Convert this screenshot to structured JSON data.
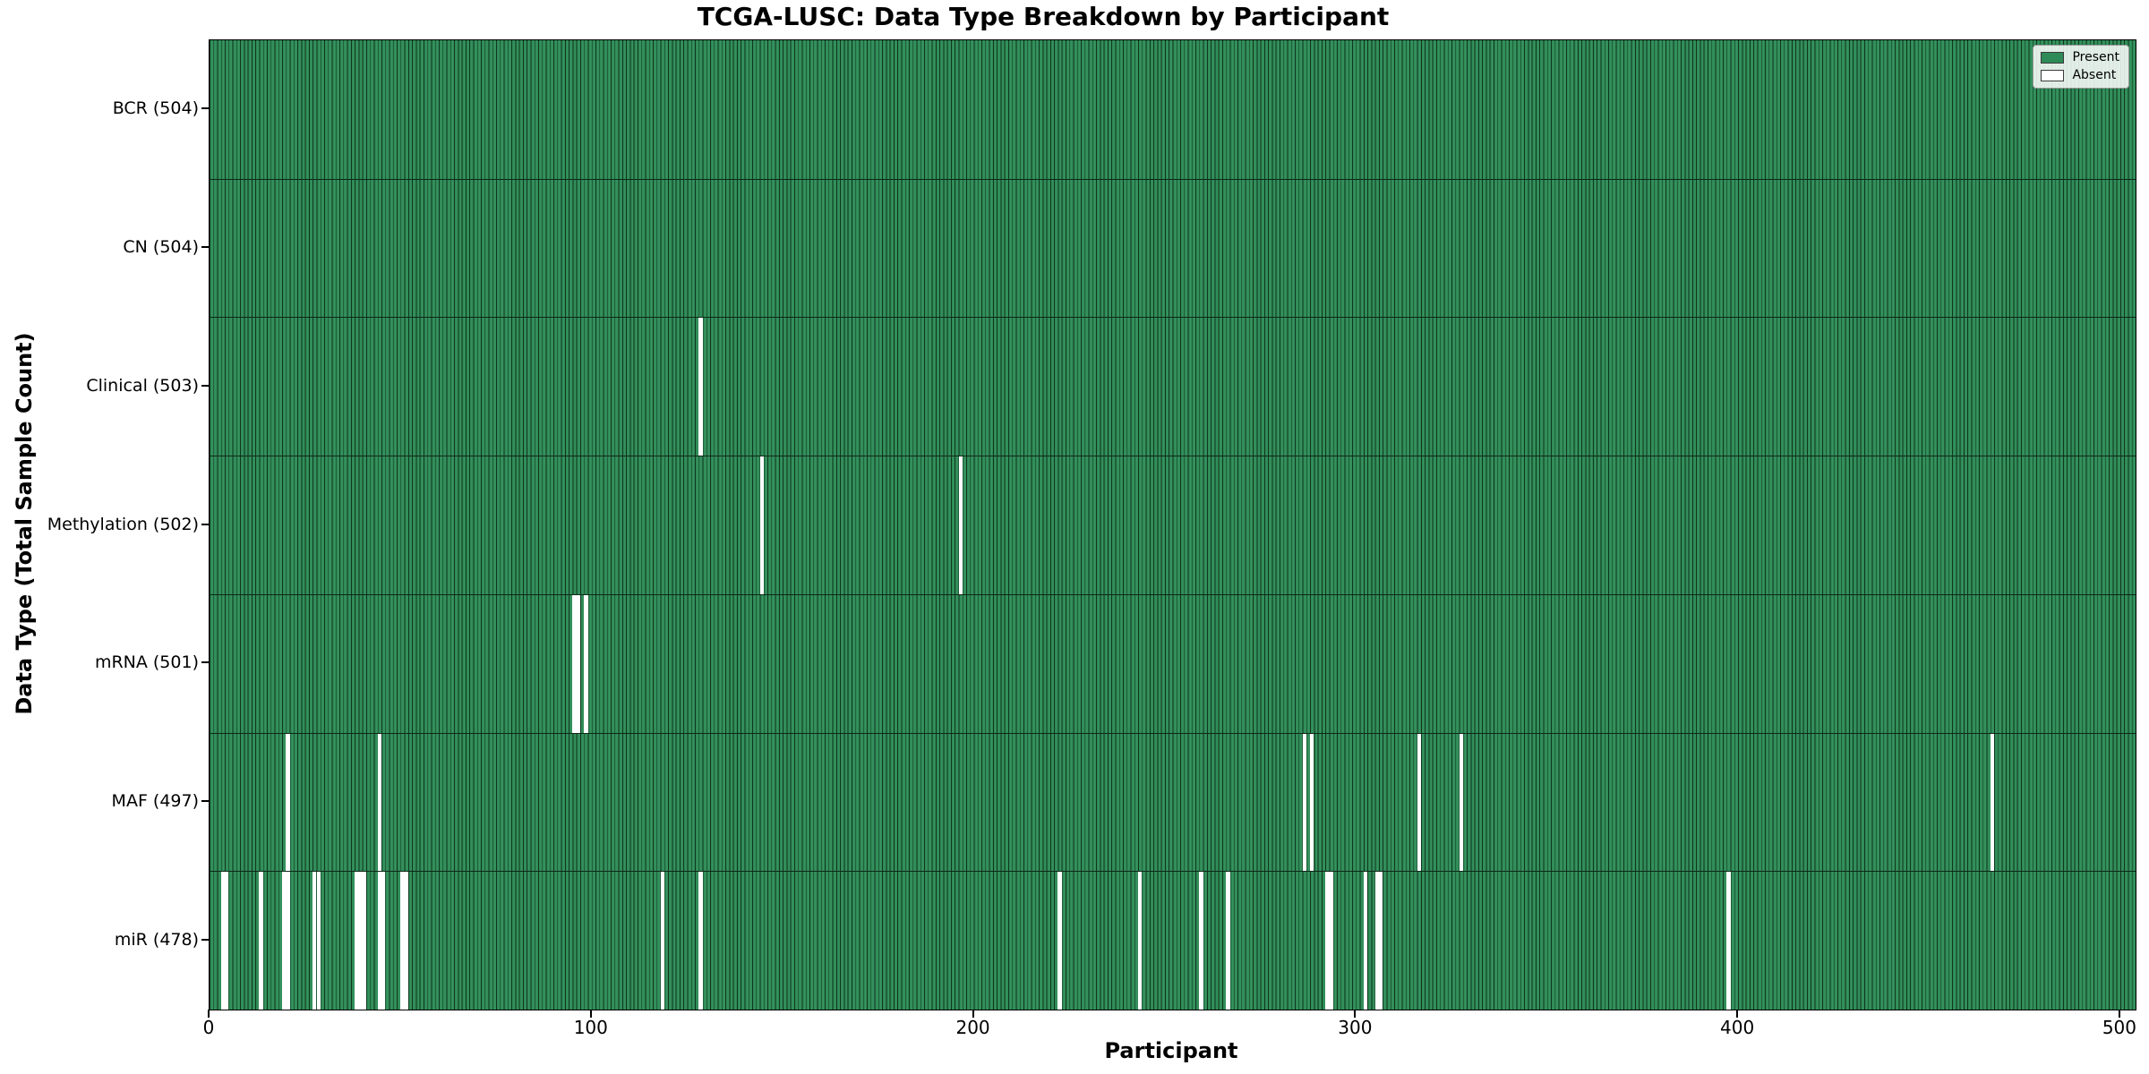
{
  "chart_data": {
    "type": "heatmap",
    "title": "TCGA-LUSC: Data Type Breakdown by Participant",
    "xlabel": "Participant",
    "ylabel": "Data Type (Total Sample Count)",
    "n_participants": 504,
    "x_ticks": [
      0,
      100,
      200,
      300,
      400,
      500
    ],
    "xlim": [
      0,
      504
    ],
    "grid": false,
    "legend_position": "upper right",
    "legend": [
      {
        "label": "Present",
        "color": "#2e8b57"
      },
      {
        "label": "Absent",
        "color": "#ffffff"
      }
    ],
    "colors": {
      "present_fill": "#2e8b57",
      "bar_edge": "#11361f",
      "absent_fill": "#ffffff",
      "row_separator": "#0e2818",
      "axis": "#000000"
    },
    "rows": [
      {
        "label": "BCR (504)",
        "data_type": "BCR",
        "total": 504,
        "absent_participants": []
      },
      {
        "label": "CN (504)",
        "data_type": "CN",
        "total": 504,
        "absent_participants": []
      },
      {
        "label": "Clinical (503)",
        "data_type": "Clinical",
        "total": 503,
        "absent_participants": [
          128
        ]
      },
      {
        "label": "Methylation (502)",
        "data_type": "Methylation",
        "total": 502,
        "absent_participants": [
          144,
          196
        ]
      },
      {
        "label": "mRNA (501)",
        "data_type": "mRNA",
        "total": 501,
        "absent_participants": [
          95,
          96,
          98
        ]
      },
      {
        "label": "MAF (497)",
        "data_type": "MAF",
        "total": 497,
        "absent_participants": [
          20,
          44,
          286,
          288,
          316,
          327,
          466
        ]
      },
      {
        "label": "miR (478)",
        "data_type": "miR",
        "total": 478,
        "absent_participants": [
          3,
          4,
          13,
          19,
          20,
          27,
          28,
          38,
          39,
          40,
          44,
          45,
          50,
          51,
          118,
          128,
          222,
          243,
          259,
          266,
          292,
          293,
          302,
          305,
          306,
          397
        ]
      }
    ]
  }
}
